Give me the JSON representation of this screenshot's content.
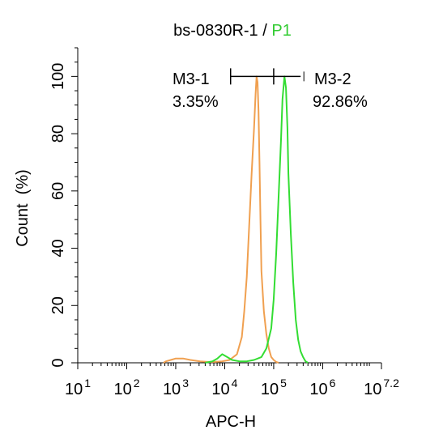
{
  "chart_data": {
    "type": "line",
    "title": "bs-0830R-1",
    "title_separator": " / ",
    "title_gate": "P1",
    "xlabel": "APC-H",
    "ylabel": "Count  (%)",
    "x_scale": "log",
    "xlim": [
      1,
      7.2
    ],
    "ylim": [
      0,
      110
    ],
    "grid": false,
    "x_ticks": [
      {
        "base": "10",
        "exp": "1",
        "value": 1
      },
      {
        "base": "10",
        "exp": "2",
        "value": 2
      },
      {
        "base": "10",
        "exp": "3",
        "value": 3
      },
      {
        "base": "10",
        "exp": "4",
        "value": 4
      },
      {
        "base": "10",
        "exp": "5",
        "value": 5
      },
      {
        "base": "10",
        "exp": "6",
        "value": 6
      },
      {
        "base": "10",
        "exp": "7.2",
        "value": 7.2
      }
    ],
    "y_ticks": [
      "0",
      "20",
      "40",
      "60",
      "80",
      "100"
    ],
    "colors": {
      "control": "#f0a050",
      "sample": "#33dd33",
      "gate_text": "#33cc33"
    },
    "series": [
      {
        "key": "control",
        "x": [
          2.75,
          2.8,
          2.9,
          3.0,
          3.15,
          3.3,
          3.5,
          3.65,
          3.8,
          3.95,
          4.1,
          4.25,
          4.35,
          4.4,
          4.45,
          4.5,
          4.55,
          4.6,
          4.63,
          4.65,
          4.67,
          4.69,
          4.71,
          4.73,
          4.75,
          4.8,
          4.85,
          4.9,
          4.95,
          5.0,
          5.05,
          5.1
        ],
        "y": [
          0,
          0.5,
          1.0,
          1.5,
          1.5,
          1.0,
          0.5,
          0.3,
          0.3,
          0.5,
          1,
          3,
          9,
          18,
          30,
          48,
          66,
          82,
          94,
          100,
          98,
          88,
          70,
          50,
          32,
          18,
          10,
          5,
          2,
          1,
          0.3,
          0
        ]
      },
      {
        "key": "sample",
        "x": [
          3.6,
          3.75,
          3.85,
          3.95,
          4.05,
          4.15,
          4.3,
          4.45,
          4.6,
          4.75,
          4.85,
          4.95,
          5.0,
          5.05,
          5.1,
          5.15,
          5.18,
          5.22,
          5.25,
          5.28,
          5.3,
          5.35,
          5.4,
          5.45,
          5.5,
          5.55,
          5.6,
          5.65,
          5.7
        ],
        "y": [
          0,
          0.5,
          1.5,
          3,
          2,
          1,
          0.5,
          0.5,
          1,
          2,
          5,
          12,
          22,
          38,
          58,
          78,
          92,
          100,
          96,
          82,
          66,
          45,
          28,
          15,
          8,
          4,
          2,
          0.5,
          0
        ]
      }
    ],
    "markers": [
      {
        "name": "M3-1",
        "percent": "3.35%",
        "x_range": [
          4.12,
          5.0
        ],
        "y": 100
      },
      {
        "name": "M3-2",
        "percent": "92.86%",
        "x_range": [
          5.0,
          5.55
        ],
        "y": 100
      }
    ]
  }
}
